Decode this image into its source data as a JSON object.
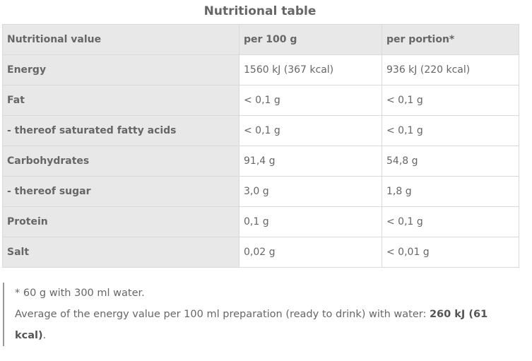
{
  "title": "Nutritional table",
  "table": {
    "headers": [
      "Nutritional value",
      "per 100 g",
      "per portion*"
    ],
    "rows": [
      {
        "label": "Energy",
        "per100": "1560 kJ (367 kcal)",
        "portion": "936 kJ (220 kcal)"
      },
      {
        "label": "Fat",
        "per100": "< 0,1 g",
        "portion": "< 0,1 g"
      },
      {
        "label": "- thereof saturated fatty acids",
        "per100": "< 0,1 g",
        "portion": "< 0,1 g"
      },
      {
        "label": "Carbohydrates",
        "per100": "91,4 g",
        "portion": "54,8 g"
      },
      {
        "label": "- thereof sugar",
        "per100": "3,0 g",
        "portion": "1,8 g"
      },
      {
        "label": "Protein",
        "per100": "0,1 g",
        "portion": "< 0,1 g"
      },
      {
        "label": "Salt",
        "per100": "0,02 g",
        "portion": "< 0,01 g"
      }
    ]
  },
  "notes": {
    "footnote": "* 60 g with 300 ml water.",
    "average_prefix": "Average of the energy value per 100 ml preparation (ready to drink) with water: ",
    "average_value": "260 kJ (61 kcal)",
    "average_suffix": "."
  }
}
